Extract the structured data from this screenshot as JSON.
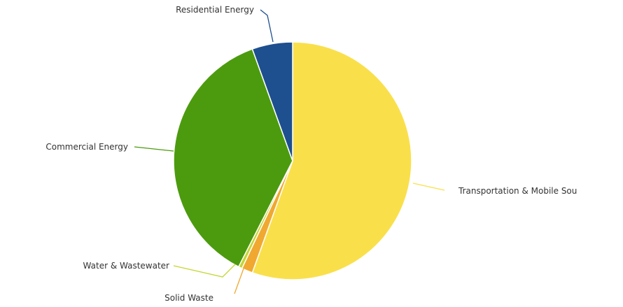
{
  "chart_data": {
    "type": "pie",
    "title": "",
    "slices": [
      {
        "label": "Transportation & Mobile Sources",
        "visible_label": "Transportation & Mobile Sou",
        "value": 55.5,
        "color": "#f9e04b"
      },
      {
        "label": "Solid Waste",
        "value": 1.5,
        "color": "#f0a830"
      },
      {
        "label": "Water & Wastewater",
        "value": 0.5,
        "color": "#c4d630"
      },
      {
        "label": "Commercial Energy",
        "value": 37.0,
        "color": "#4c9b0e"
      },
      {
        "label": "Residential Energy",
        "value": 5.5,
        "color": "#1e4f8f"
      }
    ]
  }
}
